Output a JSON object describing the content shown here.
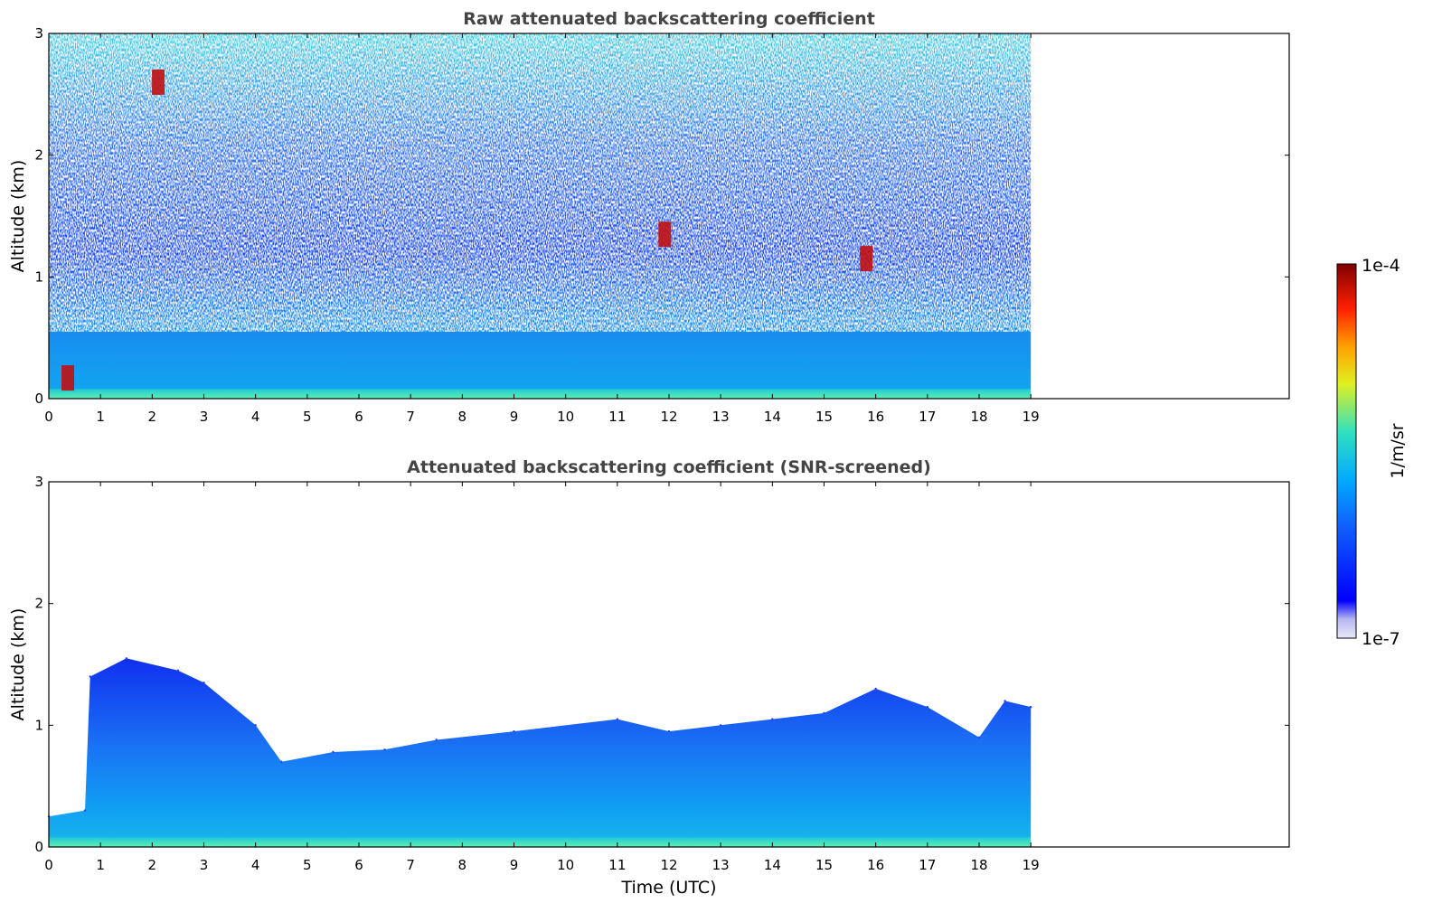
{
  "chart_data": [
    {
      "type": "heatmap",
      "title": "Raw attenuated backscattering coefficient",
      "xlabel": "",
      "ylabel": "Altitude (km)",
      "xlim": [
        0,
        24
      ],
      "ylim": [
        0,
        3
      ],
      "xticks": [
        "0",
        "1",
        "2",
        "3",
        "4",
        "5",
        "6",
        "7",
        "8",
        "9",
        "10",
        "11",
        "12",
        "13",
        "14",
        "15",
        "16",
        "17",
        "18",
        "19"
      ],
      "yticks": [
        "0",
        "1",
        "2",
        "3"
      ],
      "data_end_x": 19,
      "colorscale": "jet (log)",
      "screened": false,
      "cloud_features": [
        {
          "x": 2.1,
          "y": 2.6
        },
        {
          "x": 11.9,
          "y": 1.35
        },
        {
          "x": 15.8,
          "y": 1.15
        },
        {
          "x": 0.35,
          "y": 0.17
        }
      ]
    },
    {
      "type": "heatmap",
      "title": "Attenuated backscattering coefficient (SNR-screened)",
      "xlabel": "Time (UTC)",
      "ylabel": "Altitude (km)",
      "xlim": [
        0,
        24
      ],
      "ylim": [
        0,
        3
      ],
      "xticks": [
        "0",
        "1",
        "2",
        "3",
        "4",
        "5",
        "6",
        "7",
        "8",
        "9",
        "10",
        "11",
        "12",
        "13",
        "14",
        "15",
        "16",
        "17",
        "18",
        "19"
      ],
      "yticks": [
        "0",
        "1",
        "2",
        "3"
      ],
      "data_end_x": 19,
      "colorscale": "jet (log)",
      "screened": true,
      "boundary_layer_top": [
        {
          "x": 0.0,
          "y": 0.25
        },
        {
          "x": 0.7,
          "y": 0.3
        },
        {
          "x": 0.8,
          "y": 1.4
        },
        {
          "x": 1.5,
          "y": 1.55
        },
        {
          "x": 2.5,
          "y": 1.45
        },
        {
          "x": 3.0,
          "y": 1.35
        },
        {
          "x": 4.0,
          "y": 1.0
        },
        {
          "x": 4.5,
          "y": 0.7
        },
        {
          "x": 5.5,
          "y": 0.78
        },
        {
          "x": 6.5,
          "y": 0.8
        },
        {
          "x": 7.5,
          "y": 0.88
        },
        {
          "x": 9.0,
          "y": 0.95
        },
        {
          "x": 11.0,
          "y": 1.05
        },
        {
          "x": 12.0,
          "y": 0.95
        },
        {
          "x": 13.0,
          "y": 1.0
        },
        {
          "x": 14.0,
          "y": 1.05
        },
        {
          "x": 15.0,
          "y": 1.1
        },
        {
          "x": 16.0,
          "y": 1.3
        },
        {
          "x": 17.0,
          "y": 1.15
        },
        {
          "x": 18.0,
          "y": 0.9
        },
        {
          "x": 18.5,
          "y": 1.2
        },
        {
          "x": 19.0,
          "y": 1.15
        }
      ]
    }
  ],
  "colorbar": {
    "label": "1/m/sr",
    "max_label": "1e-4",
    "min_label": "1e-7",
    "colors": [
      "#e8e8f8",
      "#0000ff",
      "#00a8ff",
      "#30e0c0",
      "#e0f020",
      "#ffa000",
      "#ff2000",
      "#800000"
    ]
  }
}
